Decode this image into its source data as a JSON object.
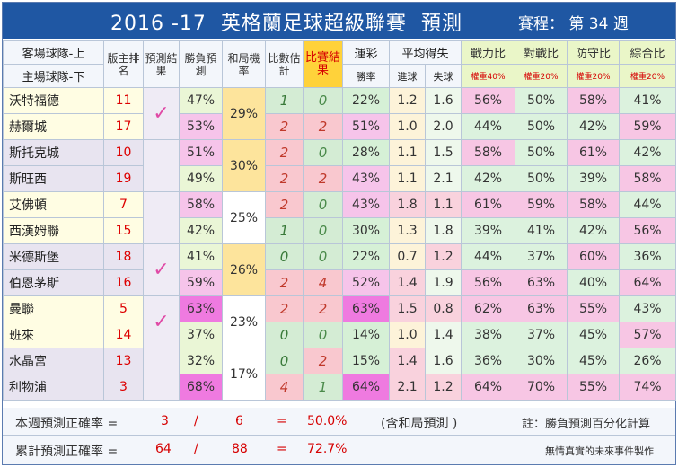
{
  "title": {
    "season": "2016 -17",
    "league": "英格蘭足球超級聯賽",
    "subject": "預測",
    "round": "賽程： 第 34 週"
  },
  "header": {
    "team_away": "客場球隊-上",
    "team_home": "主場球隊-下",
    "rank": "版主排名",
    "pred_result": "預測結果",
    "win_pred": "勝負預測",
    "draw_rate": "和局機率",
    "score_est": "比數估計",
    "match_result": "比賽結果",
    "lottery": "運彩",
    "lottery_sub": "勝率",
    "avg": "平均得失",
    "avg_for": "進球",
    "avg_against": "失球",
    "power": "戰力比",
    "power_w": "權重40%",
    "h2h": "對戰比",
    "h2h_w": "權重20%",
    "defense": "防守比",
    "defense_w": "權重20%",
    "overall": "綜合比",
    "overall_w": "權重20%"
  },
  "matches": [
    {
      "correct": "✓",
      "draw": "29%",
      "teams": [
        {
          "name": "沃特福德",
          "rank": "11",
          "win": "47%",
          "est": "1",
          "res": "0",
          "lot": "22%",
          "gf": "1.2",
          "ga": "1.6",
          "pow": "56%",
          "h2h": "50%",
          "def": "58%",
          "ovr": "41%"
        },
        {
          "name": "赫爾城",
          "rank": "17",
          "win": "53%",
          "est": "2",
          "res": "2",
          "lot": "51%",
          "gf": "1.0",
          "ga": "2.0",
          "pow": "44%",
          "h2h": "50%",
          "def": "42%",
          "ovr": "59%"
        }
      ]
    },
    {
      "correct": "",
      "draw": "30%",
      "teams": [
        {
          "name": "斯托克城",
          "rank": "10",
          "win": "51%",
          "est": "2",
          "res": "0",
          "lot": "28%",
          "gf": "1.1",
          "ga": "1.5",
          "pow": "58%",
          "h2h": "50%",
          "def": "61%",
          "ovr": "42%"
        },
        {
          "name": "斯旺西",
          "rank": "19",
          "win": "49%",
          "est": "2",
          "res": "2",
          "lot": "43%",
          "gf": "1.1",
          "ga": "2.1",
          "pow": "42%",
          "h2h": "50%",
          "def": "39%",
          "ovr": "58%"
        }
      ]
    },
    {
      "correct": "",
      "draw": "25%",
      "teams": [
        {
          "name": "艾佛頓",
          "rank": "7",
          "win": "58%",
          "est": "2",
          "res": "0",
          "lot": "43%",
          "gf": "1.8",
          "ga": "1.1",
          "pow": "61%",
          "h2h": "59%",
          "def": "58%",
          "ovr": "44%"
        },
        {
          "name": "西漢姆聯",
          "rank": "15",
          "win": "42%",
          "est": "1",
          "res": "0",
          "lot": "30%",
          "gf": "1.3",
          "ga": "1.8",
          "pow": "39%",
          "h2h": "41%",
          "def": "42%",
          "ovr": "56%"
        }
      ]
    },
    {
      "correct": "✓",
      "draw": "26%",
      "teams": [
        {
          "name": "米德斯堡",
          "rank": "18",
          "win": "41%",
          "est": "0",
          "res": "0",
          "lot": "22%",
          "gf": "0.7",
          "ga": "1.2",
          "pow": "44%",
          "h2h": "37%",
          "def": "60%",
          "ovr": "36%"
        },
        {
          "name": "伯恩茅斯",
          "rank": "16",
          "win": "59%",
          "est": "2",
          "res": "4",
          "lot": "52%",
          "gf": "1.4",
          "ga": "1.9",
          "pow": "56%",
          "h2h": "63%",
          "def": "40%",
          "ovr": "64%"
        }
      ]
    },
    {
      "correct": "✓",
      "draw": "23%",
      "teams": [
        {
          "name": "曼聯",
          "rank": "5",
          "win": "63%",
          "est": "2",
          "res": "2",
          "lot": "63%",
          "gf": "1.5",
          "ga": "0.8",
          "pow": "62%",
          "h2h": "63%",
          "def": "55%",
          "ovr": "43%"
        },
        {
          "name": "班來",
          "rank": "14",
          "win": "37%",
          "est": "0",
          "res": "0",
          "lot": "14%",
          "gf": "1.0",
          "ga": "1.4",
          "pow": "38%",
          "h2h": "37%",
          "def": "45%",
          "ovr": "57%"
        }
      ]
    },
    {
      "correct": "",
      "draw": "17%",
      "teams": [
        {
          "name": "水晶宮",
          "rank": "13",
          "win": "32%",
          "est": "0",
          "res": "2",
          "lot": "15%",
          "gf": "1.4",
          "ga": "1.6",
          "pow": "36%",
          "h2h": "30%",
          "def": "45%",
          "ovr": "26%"
        },
        {
          "name": "利物浦",
          "rank": "3",
          "win": "68%",
          "est": "4",
          "res": "1",
          "lot": "64%",
          "gf": "2.1",
          "ga": "1.2",
          "pow": "64%",
          "h2h": "70%",
          "def": "55%",
          "ovr": "74%"
        }
      ]
    }
  ],
  "footer": {
    "week_label": "本週預測正確率 =",
    "week_correct": "3",
    "slash": "/",
    "week_total": "6",
    "eq": "=",
    "week_rate": "50.0%",
    "week_note": "(含和局預測 )",
    "note": "註：勝負預測百分化計算",
    "total_label": "累計預測正確率 =",
    "total_correct": "64",
    "total_total": "88",
    "total_rate": "72.7%",
    "credit": "無情真實的未來事件製作"
  }
}
